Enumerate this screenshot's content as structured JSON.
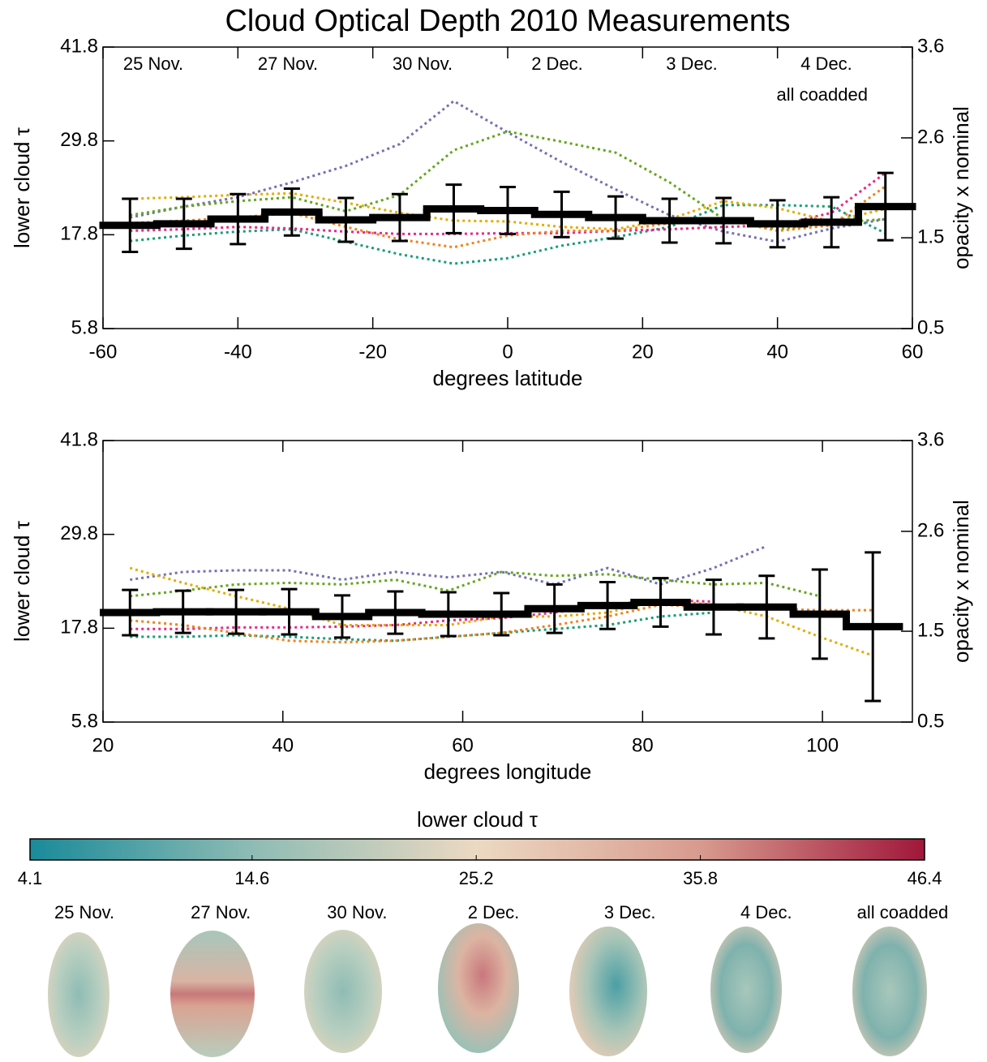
{
  "chart_data": [
    {
      "type": "line",
      "title": "Cloud Optical Depth 2010 Measurements",
      "xlabel": "degrees latitude",
      "ylabel": "lower cloud τ",
      "y2label": "opacity x nominal",
      "xlim": [
        -60,
        60
      ],
      "xticks": [
        -60,
        -40,
        -20,
        0,
        20,
        40,
        60
      ],
      "ylim": [
        5.8,
        41.8
      ],
      "yticks": [
        5.8,
        17.8,
        29.8,
        41.8
      ],
      "y2lim": [
        0.5,
        3.6
      ],
      "y2ticks": [
        0.5,
        1.5,
        2.6,
        3.6
      ],
      "legend": true,
      "x": [
        -56,
        -48,
        -40,
        -32,
        -24,
        -16,
        -8,
        0,
        8,
        16,
        24,
        32,
        40,
        48,
        56
      ],
      "series": [
        {
          "name": "25 Nov.",
          "color": "#1b9e77",
          "style": "dotted",
          "values": [
            17.0,
            17.7,
            18.2,
            18.5,
            16.9,
            15.3,
            14.1,
            14.8,
            16.4,
            17.5,
            18.8,
            21.6,
            21.6,
            21.4,
            18.0
          ]
        },
        {
          "name": "27 Nov.",
          "color": "#7570b3",
          "style": "dotted",
          "values": [
            20.0,
            21.4,
            22.6,
            24.5,
            26.6,
            29.4,
            34.9,
            30.9,
            27.1,
            23.6,
            20.3,
            18.2,
            16.9,
            18.6,
            19.8
          ]
        },
        {
          "name": "30 Nov.",
          "color": "#e7298a",
          "style": "dotted",
          "values": [
            18.3,
            18.5,
            18.8,
            18.6,
            18.2,
            17.9,
            17.9,
            18.0,
            18.0,
            18.3,
            18.5,
            18.8,
            19.0,
            20.6,
            25.7
          ]
        },
        {
          "name": "2 Dec.",
          "color": "#66a61e",
          "style": "dotted",
          "values": [
            20.3,
            21.4,
            22.1,
            22.6,
            20.8,
            22.9,
            28.6,
            31.0,
            29.7,
            28.3,
            24.5,
            19.8,
            18.5,
            19.3,
            19.8
          ]
        },
        {
          "name": "3 Dec.",
          "color": "#e6ab02",
          "style": "dotted",
          "values": [
            22.4,
            22.6,
            22.9,
            23.1,
            21.9,
            20.6,
            19.6,
            19.5,
            18.8,
            18.5,
            19.8,
            22.1,
            21.2,
            19.5,
            21.1
          ]
        },
        {
          "name": "4 Dec.",
          "color": "#f0821e",
          "style": "dotted",
          "values": [
            19.3,
            19.6,
            20.0,
            20.6,
            18.8,
            17.2,
            16.2,
            17.7,
            18.3,
            18.3,
            19.3,
            19.8,
            18.3,
            19.0,
            24.0
          ]
        },
        {
          "name": "all coadded",
          "color": "#000000",
          "style": "step",
          "values": [
            19.0,
            19.2,
            19.8,
            20.7,
            19.7,
            20.0,
            21.1,
            20.9,
            20.4,
            20.0,
            19.6,
            19.6,
            19.2,
            19.4,
            21.4
          ],
          "errors": [
            3.4,
            3.2,
            3.2,
            3.0,
            2.8,
            3.0,
            3.1,
            3.0,
            2.9,
            2.7,
            2.8,
            2.9,
            3.0,
            3.2,
            4.3
          ]
        }
      ]
    },
    {
      "type": "line",
      "xlabel": "degrees longitude",
      "ylabel": "lower cloud τ",
      "y2label": "opacity x nominal",
      "xlim": [
        20,
        110
      ],
      "xticks": [
        20,
        40,
        60,
        80,
        100
      ],
      "ylim": [
        5.8,
        41.8
      ],
      "yticks": [
        5.8,
        17.8,
        29.8,
        41.8
      ],
      "y2lim": [
        0.5,
        3.6
      ],
      "y2ticks": [
        0.5,
        1.5,
        2.6,
        3.6
      ],
      "legend": false,
      "x": [
        23.0,
        28.9,
        34.8,
        40.7,
        46.6,
        52.5,
        58.4,
        64.3,
        70.2,
        76.1,
        82.0,
        87.9,
        93.8,
        99.7,
        105.6
      ],
      "series": [
        {
          "name": "25 Nov.",
          "color": "#1b9e77",
          "style": "dotted",
          "values": [
            16.7,
            16.7,
            16.9,
            16.7,
            16.4,
            16.2,
            16.7,
            17.2,
            17.7,
            18.2,
            19.3,
            19.8,
            null,
            null,
            null
          ]
        },
        {
          "name": "27 Nov.",
          "color": "#7570b3",
          "style": "dotted",
          "values": [
            24.0,
            25.0,
            25.2,
            25.2,
            24.0,
            25.0,
            24.3,
            25.0,
            23.4,
            25.5,
            23.4,
            25.5,
            28.3,
            null,
            null
          ]
        },
        {
          "name": "30 Nov.",
          "color": "#e7298a",
          "style": "dotted",
          "values": [
            17.7,
            17.7,
            17.9,
            17.9,
            18.0,
            18.2,
            18.8,
            19.1,
            19.8,
            20.8,
            21.4,
            21.2,
            null,
            null,
            null
          ]
        },
        {
          "name": "2 Dec.",
          "color": "#66a61e",
          "style": "dotted",
          "values": [
            21.9,
            22.6,
            23.4,
            23.6,
            23.4,
            24.0,
            22.6,
            25.0,
            24.5,
            24.7,
            24.0,
            23.4,
            23.6,
            21.9,
            null
          ]
        },
        {
          "name": "3 Dec.",
          "color": "#e6ab02",
          "style": "dotted",
          "values": [
            25.5,
            23.6,
            21.9,
            20.3,
            18.2,
            18.2,
            18.2,
            19.3,
            19.3,
            19.8,
            21.4,
            20.8,
            19.3,
            16.7,
            14.3
          ]
        },
        {
          "name": "4 Dec.",
          "color": "#f0821e",
          "style": "dotted",
          "values": [
            18.8,
            18.2,
            17.2,
            16.2,
            16.0,
            16.2,
            16.7,
            17.2,
            18.2,
            19.3,
            20.8,
            20.5,
            20.3,
            20.1,
            20.1
          ]
        },
        {
          "name": "all coadded",
          "color": "#000000",
          "style": "step",
          "values": [
            19.8,
            19.9,
            19.9,
            19.9,
            19.3,
            19.8,
            19.6,
            19.6,
            20.3,
            20.7,
            21.1,
            20.5,
            20.5,
            19.6,
            18.0
          ],
          "errors": [
            2.9,
            2.7,
            2.8,
            2.9,
            2.7,
            2.7,
            2.8,
            2.7,
            3.1,
            3.0,
            3.1,
            3.5,
            4.0,
            5.7,
            9.5
          ]
        }
      ]
    },
    {
      "type": "colorbar",
      "title": "lower cloud τ",
      "zlim": [
        4.1,
        46.4
      ],
      "ticks": [
        4.1,
        14.6,
        25.2,
        35.8,
        46.4
      ],
      "colormap": [
        "#1a8a9a",
        "#8fbcb4",
        "#ecd9c2",
        "#d89a8e",
        "#a0173a"
      ]
    },
    {
      "type": "image-grid",
      "titles": [
        "25 Nov.",
        "27 Nov.",
        "30 Nov.",
        "2 Dec.",
        "3 Dec.",
        "4 Dec.",
        "all coadded"
      ],
      "title_colors": [
        "#1b9e77",
        "#7570b3",
        "#e7298a",
        "#66a61e",
        "#e6ab02",
        "#f0821e",
        "#000000"
      ]
    }
  ]
}
